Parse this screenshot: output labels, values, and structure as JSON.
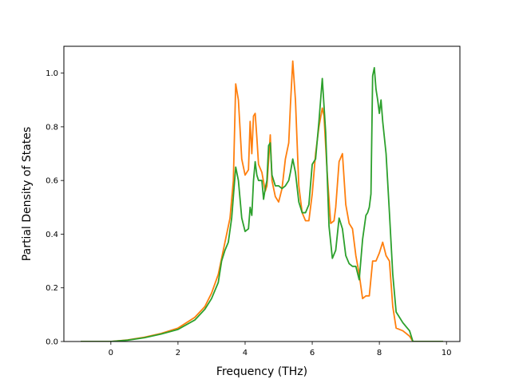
{
  "chart_data": {
    "type": "line",
    "xlabel": "Frequency (THz)",
    "ylabel": "Partial Density of States",
    "xlim": [
      -1.4,
      10.4
    ],
    "ylim": [
      0,
      1.1
    ],
    "xticks": [
      0,
      2,
      4,
      6,
      8,
      10
    ],
    "yticks": [
      0.0,
      0.2,
      0.4,
      0.6,
      0.8,
      1.0
    ],
    "xtick_labels": [
      "0",
      "2",
      "4",
      "6",
      "8",
      "10"
    ],
    "ytick_labels": [
      "0.0",
      "0.2",
      "0.4",
      "0.6",
      "0.8",
      "1.0"
    ],
    "grid": false,
    "series": [
      {
        "color": "#ff7f0e",
        "x": [
          -0.9,
          0.0,
          0.5,
          1.0,
          1.5,
          2.0,
          2.5,
          2.8,
          3.0,
          3.2,
          3.4,
          3.55,
          3.65,
          3.72,
          3.8,
          3.9,
          4.0,
          4.1,
          4.15,
          4.2,
          4.25,
          4.3,
          4.35,
          4.4,
          4.5,
          4.6,
          4.65,
          4.75,
          4.8,
          4.9,
          5.0,
          5.1,
          5.2,
          5.3,
          5.35,
          5.42,
          5.5,
          5.6,
          5.7,
          5.8,
          5.9,
          6.0,
          6.1,
          6.2,
          6.3,
          6.35,
          6.45,
          6.55,
          6.65,
          6.7,
          6.8,
          6.9,
          7.0,
          7.1,
          7.2,
          7.3,
          7.4,
          7.5,
          7.6,
          7.7,
          7.8,
          7.9,
          8.0,
          8.1,
          8.2,
          8.3,
          8.4,
          8.5,
          8.7,
          8.9,
          9.0,
          9.5,
          9.9
        ],
        "y": [
          0.0,
          0.0,
          0.006,
          0.016,
          0.03,
          0.05,
          0.09,
          0.13,
          0.18,
          0.25,
          0.37,
          0.46,
          0.6,
          0.96,
          0.9,
          0.68,
          0.62,
          0.64,
          0.82,
          0.7,
          0.84,
          0.85,
          0.76,
          0.66,
          0.63,
          0.56,
          0.58,
          0.77,
          0.6,
          0.54,
          0.52,
          0.57,
          0.68,
          0.74,
          0.88,
          1.045,
          0.9,
          0.58,
          0.48,
          0.45,
          0.45,
          0.55,
          0.7,
          0.8,
          0.87,
          0.84,
          0.62,
          0.44,
          0.45,
          0.5,
          0.67,
          0.7,
          0.51,
          0.44,
          0.42,
          0.32,
          0.25,
          0.16,
          0.17,
          0.17,
          0.3,
          0.3,
          0.33,
          0.37,
          0.32,
          0.3,
          0.13,
          0.05,
          0.04,
          0.02,
          0.0,
          0.0,
          0.0
        ]
      },
      {
        "color": "#2ca02c",
        "x": [
          -0.9,
          0.0,
          0.5,
          1.0,
          1.5,
          2.0,
          2.5,
          2.8,
          3.0,
          3.2,
          3.3,
          3.4,
          3.5,
          3.6,
          3.65,
          3.72,
          3.8,
          3.9,
          4.0,
          4.1,
          4.15,
          4.2,
          4.25,
          4.3,
          4.35,
          4.4,
          4.5,
          4.55,
          4.6,
          4.65,
          4.7,
          4.75,
          4.8,
          4.9,
          5.0,
          5.1,
          5.2,
          5.3,
          5.35,
          5.42,
          5.5,
          5.6,
          5.7,
          5.8,
          5.9,
          6.0,
          6.1,
          6.2,
          6.25,
          6.3,
          6.4,
          6.5,
          6.6,
          6.7,
          6.8,
          6.9,
          7.0,
          7.1,
          7.2,
          7.3,
          7.4,
          7.5,
          7.6,
          7.65,
          7.7,
          7.75,
          7.8,
          7.85,
          7.9,
          7.95,
          8.0,
          8.05,
          8.1,
          8.2,
          8.3,
          8.4,
          8.5,
          8.7,
          8.9,
          9.0,
          9.5,
          9.9
        ],
        "y": [
          0.0,
          0.0,
          0.005,
          0.014,
          0.028,
          0.045,
          0.08,
          0.12,
          0.16,
          0.22,
          0.3,
          0.34,
          0.37,
          0.46,
          0.54,
          0.65,
          0.6,
          0.46,
          0.41,
          0.42,
          0.5,
          0.47,
          0.6,
          0.67,
          0.62,
          0.6,
          0.6,
          0.53,
          0.57,
          0.6,
          0.73,
          0.74,
          0.62,
          0.58,
          0.58,
          0.57,
          0.58,
          0.6,
          0.63,
          0.68,
          0.63,
          0.52,
          0.48,
          0.48,
          0.51,
          0.66,
          0.68,
          0.82,
          0.9,
          0.98,
          0.78,
          0.43,
          0.31,
          0.34,
          0.46,
          0.42,
          0.32,
          0.29,
          0.28,
          0.28,
          0.23,
          0.38,
          0.47,
          0.48,
          0.5,
          0.55,
          0.99,
          1.02,
          0.94,
          0.9,
          0.85,
          0.9,
          0.82,
          0.7,
          0.48,
          0.25,
          0.11,
          0.07,
          0.04,
          0.0,
          0.0,
          0.0
        ]
      }
    ]
  }
}
